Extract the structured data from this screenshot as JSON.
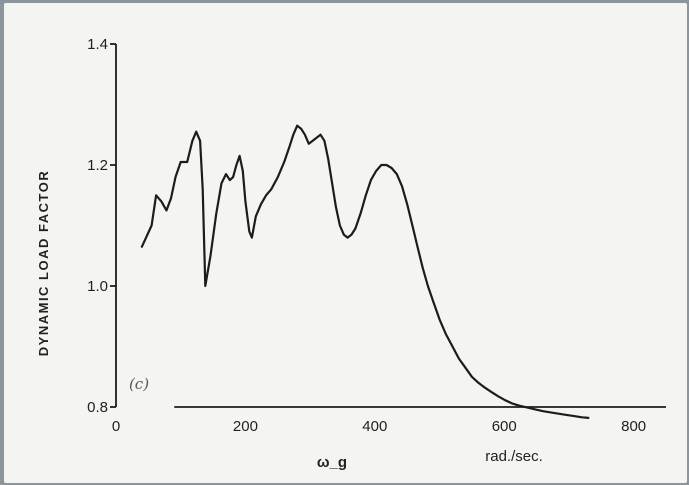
{
  "chart_data": {
    "type": "line",
    "title": "",
    "xlabel": "ω_g",
    "xunit": "rad./sec.",
    "ylabel": "DYNAMIC LOAD FACTOR",
    "annotation": "(c)",
    "xlim": [
      0,
      850
    ],
    "ylim": [
      0.8,
      1.4
    ],
    "xticks": [
      0,
      200,
      400,
      600,
      800
    ],
    "xtick_labels": [
      "0",
      "200",
      "400",
      "600",
      "800"
    ],
    "yticks": [
      0.8,
      1.0,
      1.2,
      1.4
    ],
    "ytick_labels": [
      "0.8",
      "1.0",
      "1.2",
      "1.4"
    ],
    "grid": false,
    "series": [
      {
        "x": [
          40,
          55,
          62,
          70,
          78,
          85,
          92,
          100,
          110,
          118,
          124,
          130,
          134,
          138,
          146,
          155,
          163,
          170,
          176,
          181,
          186,
          191,
          196,
          200,
          206,
          210,
          216,
          224,
          232,
          240,
          250,
          260,
          268,
          274,
          280,
          286,
          292,
          298,
          304,
          310,
          316,
          322,
          328,
          334,
          340,
          346,
          352,
          358,
          364,
          370,
          378,
          386,
          394,
          402,
          410,
          418,
          426,
          434,
          442,
          450,
          458,
          466,
          474,
          482,
          490,
          500,
          510,
          520,
          530,
          540,
          550,
          560,
          570,
          580,
          590,
          600,
          612,
          624,
          636,
          648,
          660,
          672,
          684,
          696,
          708,
          720,
          730
        ],
        "y": [
          1.065,
          1.1,
          1.15,
          1.14,
          1.125,
          1.145,
          1.18,
          1.205,
          1.205,
          1.24,
          1.255,
          1.24,
          1.16,
          1.0,
          1.05,
          1.12,
          1.17,
          1.185,
          1.175,
          1.18,
          1.2,
          1.215,
          1.19,
          1.14,
          1.09,
          1.08,
          1.115,
          1.135,
          1.15,
          1.16,
          1.18,
          1.205,
          1.23,
          1.25,
          1.265,
          1.26,
          1.25,
          1.235,
          1.24,
          1.245,
          1.25,
          1.24,
          1.21,
          1.17,
          1.13,
          1.1,
          1.085,
          1.08,
          1.085,
          1.095,
          1.12,
          1.15,
          1.175,
          1.19,
          1.2,
          1.2,
          1.195,
          1.185,
          1.165,
          1.135,
          1.1,
          1.065,
          1.03,
          1.0,
          0.975,
          0.945,
          0.92,
          0.9,
          0.88,
          0.865,
          0.85,
          0.84,
          0.832,
          0.825,
          0.818,
          0.812,
          0.806,
          0.802,
          0.799,
          0.796,
          0.793,
          0.791,
          0.789,
          0.787,
          0.785,
          0.783,
          0.782
        ]
      }
    ]
  }
}
